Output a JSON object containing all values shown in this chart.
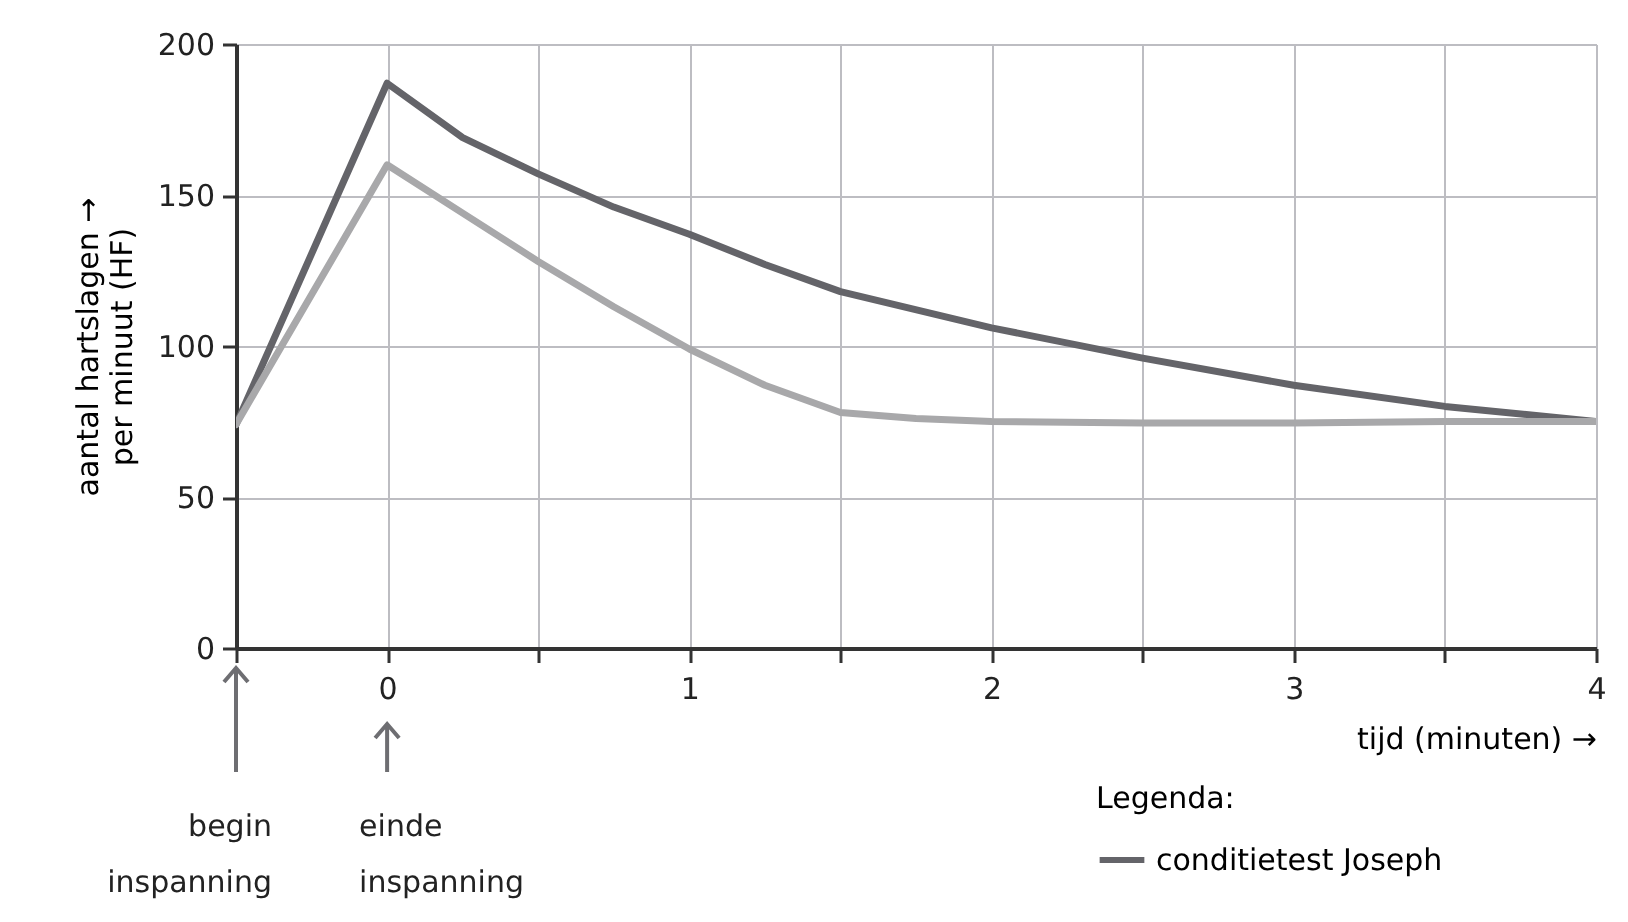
{
  "chart_data": {
    "type": "line",
    "xlabel": "tijd (minuten) →",
    "ylabel": "aantal hartslagen →\nper minuut (HF)",
    "xlim": [
      -0.5,
      4
    ],
    "ylim": [
      0,
      200
    ],
    "xticks": [
      {
        "value": -0.5,
        "label": null
      },
      0,
      {
        "value": 0.5,
        "label": null
      },
      1,
      {
        "value": 1.5,
        "label": null
      },
      2,
      {
        "value": 2.5,
        "label": null
      },
      3,
      {
        "value": 3.5,
        "label": null
      },
      4
    ],
    "yticks": [
      0,
      50,
      100,
      150,
      200
    ],
    "grid": true,
    "legend": "bottom right",
    "legend_title": "Legenda:",
    "line_style": "solid",
    "marker": "none",
    "series": [
      {
        "name": "conditietest Joseph",
        "color": "#646469",
        "x": [
          -0.5,
          0,
          0.25,
          0.5,
          0.75,
          1,
          1.25,
          1.5,
          2,
          2.5,
          3,
          3.5,
          4
        ],
        "values": [
          74,
          187,
          169,
          157,
          146,
          137,
          127,
          118,
          106,
          96,
          87,
          80,
          75
        ]
      },
      {
        "color": "#a8a8aa",
        "x": [
          -0.5,
          0,
          0.25,
          0.5,
          0.75,
          1,
          1.25,
          1.5,
          1.75,
          2,
          2.5,
          3,
          3.5,
          4
        ],
        "values": [
          74,
          160,
          144,
          128,
          113,
          99,
          87,
          78,
          76,
          75,
          74.5,
          74.5,
          75,
          75
        ]
      }
    ],
    "annotations": [
      "begin inspanning",
      "einde inspanning"
    ]
  }
}
